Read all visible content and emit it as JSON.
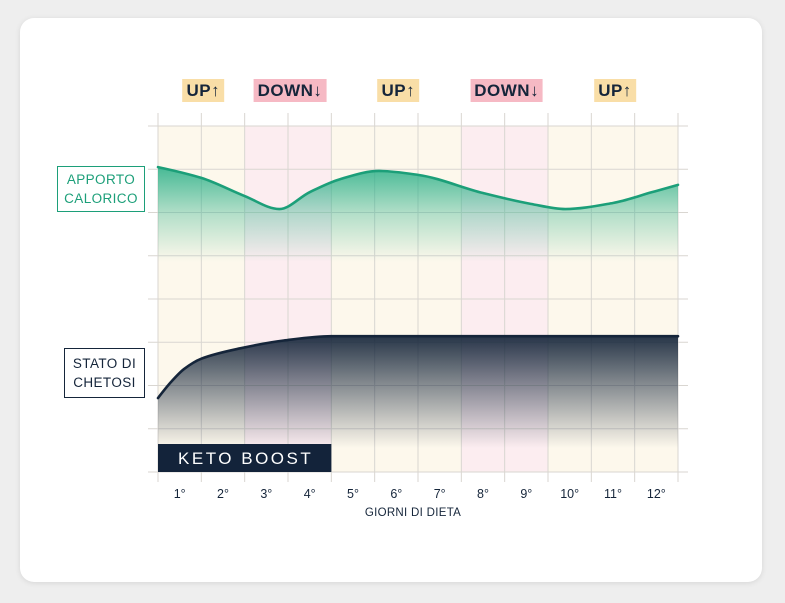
{
  "chart_data": {
    "type": "area",
    "categories": [
      "1°",
      "2°",
      "3°",
      "4°",
      "5°",
      "6°",
      "7°",
      "8°",
      "9°",
      "10°",
      "11°",
      "12°"
    ],
    "xlabel": "GIORNI DI DIETA",
    "xlim": [
      0.5,
      12.5
    ],
    "ylim": [
      0,
      8
    ],
    "grid": true,
    "phases": [
      {
        "label": "UP↑",
        "start": 1,
        "end": 2,
        "badge_color": "#f9dea7",
        "band_color": "#fdf8ec"
      },
      {
        "label": "DOWN↓",
        "start": 3,
        "end": 4,
        "badge_color": "#f6b9c4",
        "band_color": "#fcedf0"
      },
      {
        "label": "UP↑",
        "start": 5,
        "end": 7,
        "badge_color": "#f9dea7",
        "band_color": "#fdf8ec"
      },
      {
        "label": "DOWN↓",
        "start": 8,
        "end": 9,
        "badge_color": "#f6b9c4",
        "band_color": "#fcedf0"
      },
      {
        "label": "UP↑",
        "start": 10,
        "end": 12,
        "badge_color": "#f9dea7",
        "band_color": "#fdf8ec"
      }
    ],
    "series": [
      {
        "name": "APPORTO CALORICO",
        "color": "#1c9f79",
        "x": [
          0.5,
          1.5,
          2.5,
          3.3,
          4.0,
          4.7,
          5.6,
          6.5,
          8.0,
          9.1,
          9.9,
          11.0,
          11.9,
          12.5
        ],
        "y": [
          7.05,
          6.8,
          6.38,
          6.08,
          6.47,
          6.77,
          6.96,
          6.87,
          6.45,
          6.2,
          6.08,
          6.22,
          6.47,
          6.64
        ]
      },
      {
        "name": "STATO DI CHETOSI",
        "color": "#15253a",
        "x": [
          0.5,
          0.8,
          1.1,
          1.5,
          2.4,
          3.4,
          4.5,
          12.5
        ],
        "y": [
          1.71,
          2.08,
          2.38,
          2.62,
          2.86,
          3.04,
          3.14,
          3.14
        ]
      }
    ],
    "annotation": {
      "label": "KETO BOOST",
      "start": 1,
      "end": 4,
      "color": "#13233a"
    }
  },
  "colors": {
    "text": "#15253a",
    "grid": "#d9d6d1",
    "card": "#ffffff",
    "background": "#eeeeee"
  }
}
